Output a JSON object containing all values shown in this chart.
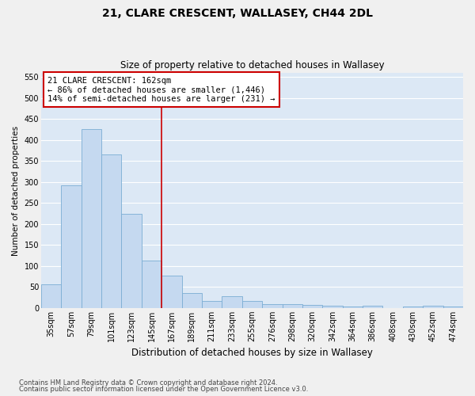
{
  "title": "21, CLARE CRESCENT, WALLASEY, CH44 2DL",
  "subtitle": "Size of property relative to detached houses in Wallasey",
  "xlabel": "Distribution of detached houses by size in Wallasey",
  "ylabel": "Number of detached properties",
  "footnote1": "Contains HM Land Registry data © Crown copyright and database right 2024.",
  "footnote2": "Contains public sector information licensed under the Open Government Licence v3.0.",
  "annotation_title": "21 CLARE CRESCENT: 162sqm",
  "annotation_line1": "← 86% of detached houses are smaller (1,446)",
  "annotation_line2": "14% of semi-detached houses are larger (231) →",
  "bar_color": "#c5d9f0",
  "bar_edge_color": "#7badd4",
  "property_line_color": "#cc0000",
  "annotation_box_edge_color": "#cc0000",
  "categories": [
    "35sqm",
    "57sqm",
    "79sqm",
    "101sqm",
    "123sqm",
    "145sqm",
    "167sqm",
    "189sqm",
    "211sqm",
    "233sqm",
    "255sqm",
    "276sqm",
    "298sqm",
    "320sqm",
    "342sqm",
    "364sqm",
    "386sqm",
    "408sqm",
    "430sqm",
    "452sqm",
    "474sqm"
  ],
  "values": [
    57,
    293,
    427,
    365,
    225,
    113,
    77,
    36,
    17,
    29,
    16,
    9,
    10,
    8,
    5,
    4,
    5,
    0,
    3,
    5,
    4
  ],
  "property_line_index": 6,
  "ylim": [
    0,
    560
  ],
  "yticks": [
    0,
    50,
    100,
    150,
    200,
    250,
    300,
    350,
    400,
    450,
    500,
    550
  ],
  "background_color": "#dce8f5",
  "fig_background_color": "#f0f0f0",
  "grid_color": "#ffffff",
  "title_fontsize": 10,
  "subtitle_fontsize": 8.5,
  "xlabel_fontsize": 8.5,
  "ylabel_fontsize": 7.5,
  "tick_fontsize": 7,
  "annotation_fontsize": 7.5,
  "footnote_fontsize": 6
}
